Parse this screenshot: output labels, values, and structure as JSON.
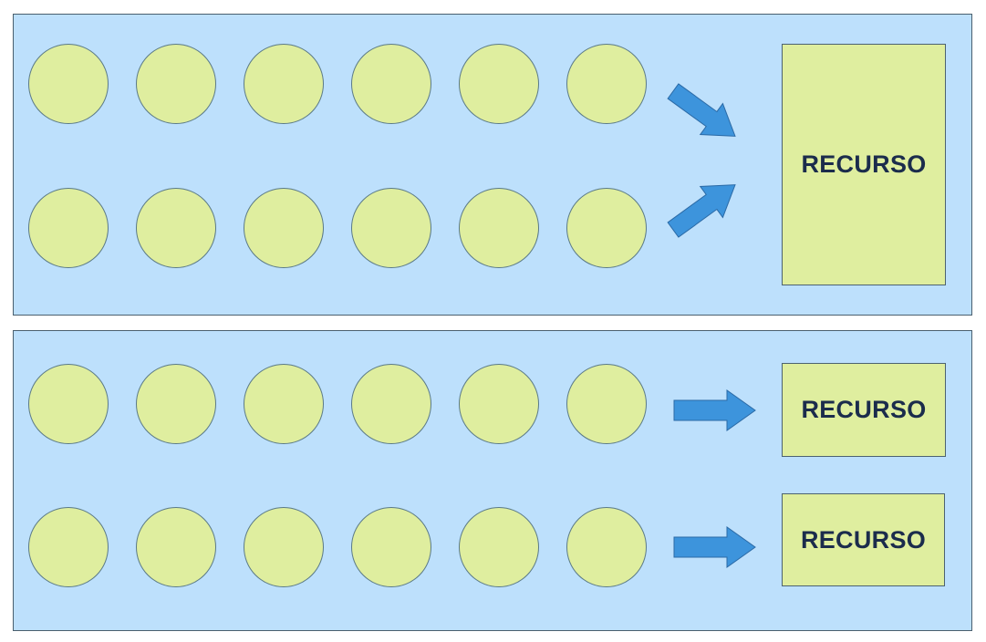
{
  "diagram": {
    "top_panel": {
      "rows": 2,
      "circles_per_row": 6,
      "resource_label": "RECURSO"
    },
    "bottom_panel": {
      "rows": 2,
      "circles_per_row": 6,
      "resources": [
        {
          "label": "RECURSO"
        },
        {
          "label": "RECURSO"
        }
      ]
    },
    "colors": {
      "panel_background": "#bde0fc",
      "circle_fill": "#dfee9f",
      "resource_fill": "#dfee9f",
      "arrow_fill": "#3d94dc",
      "text": "#1b2c4c"
    }
  }
}
